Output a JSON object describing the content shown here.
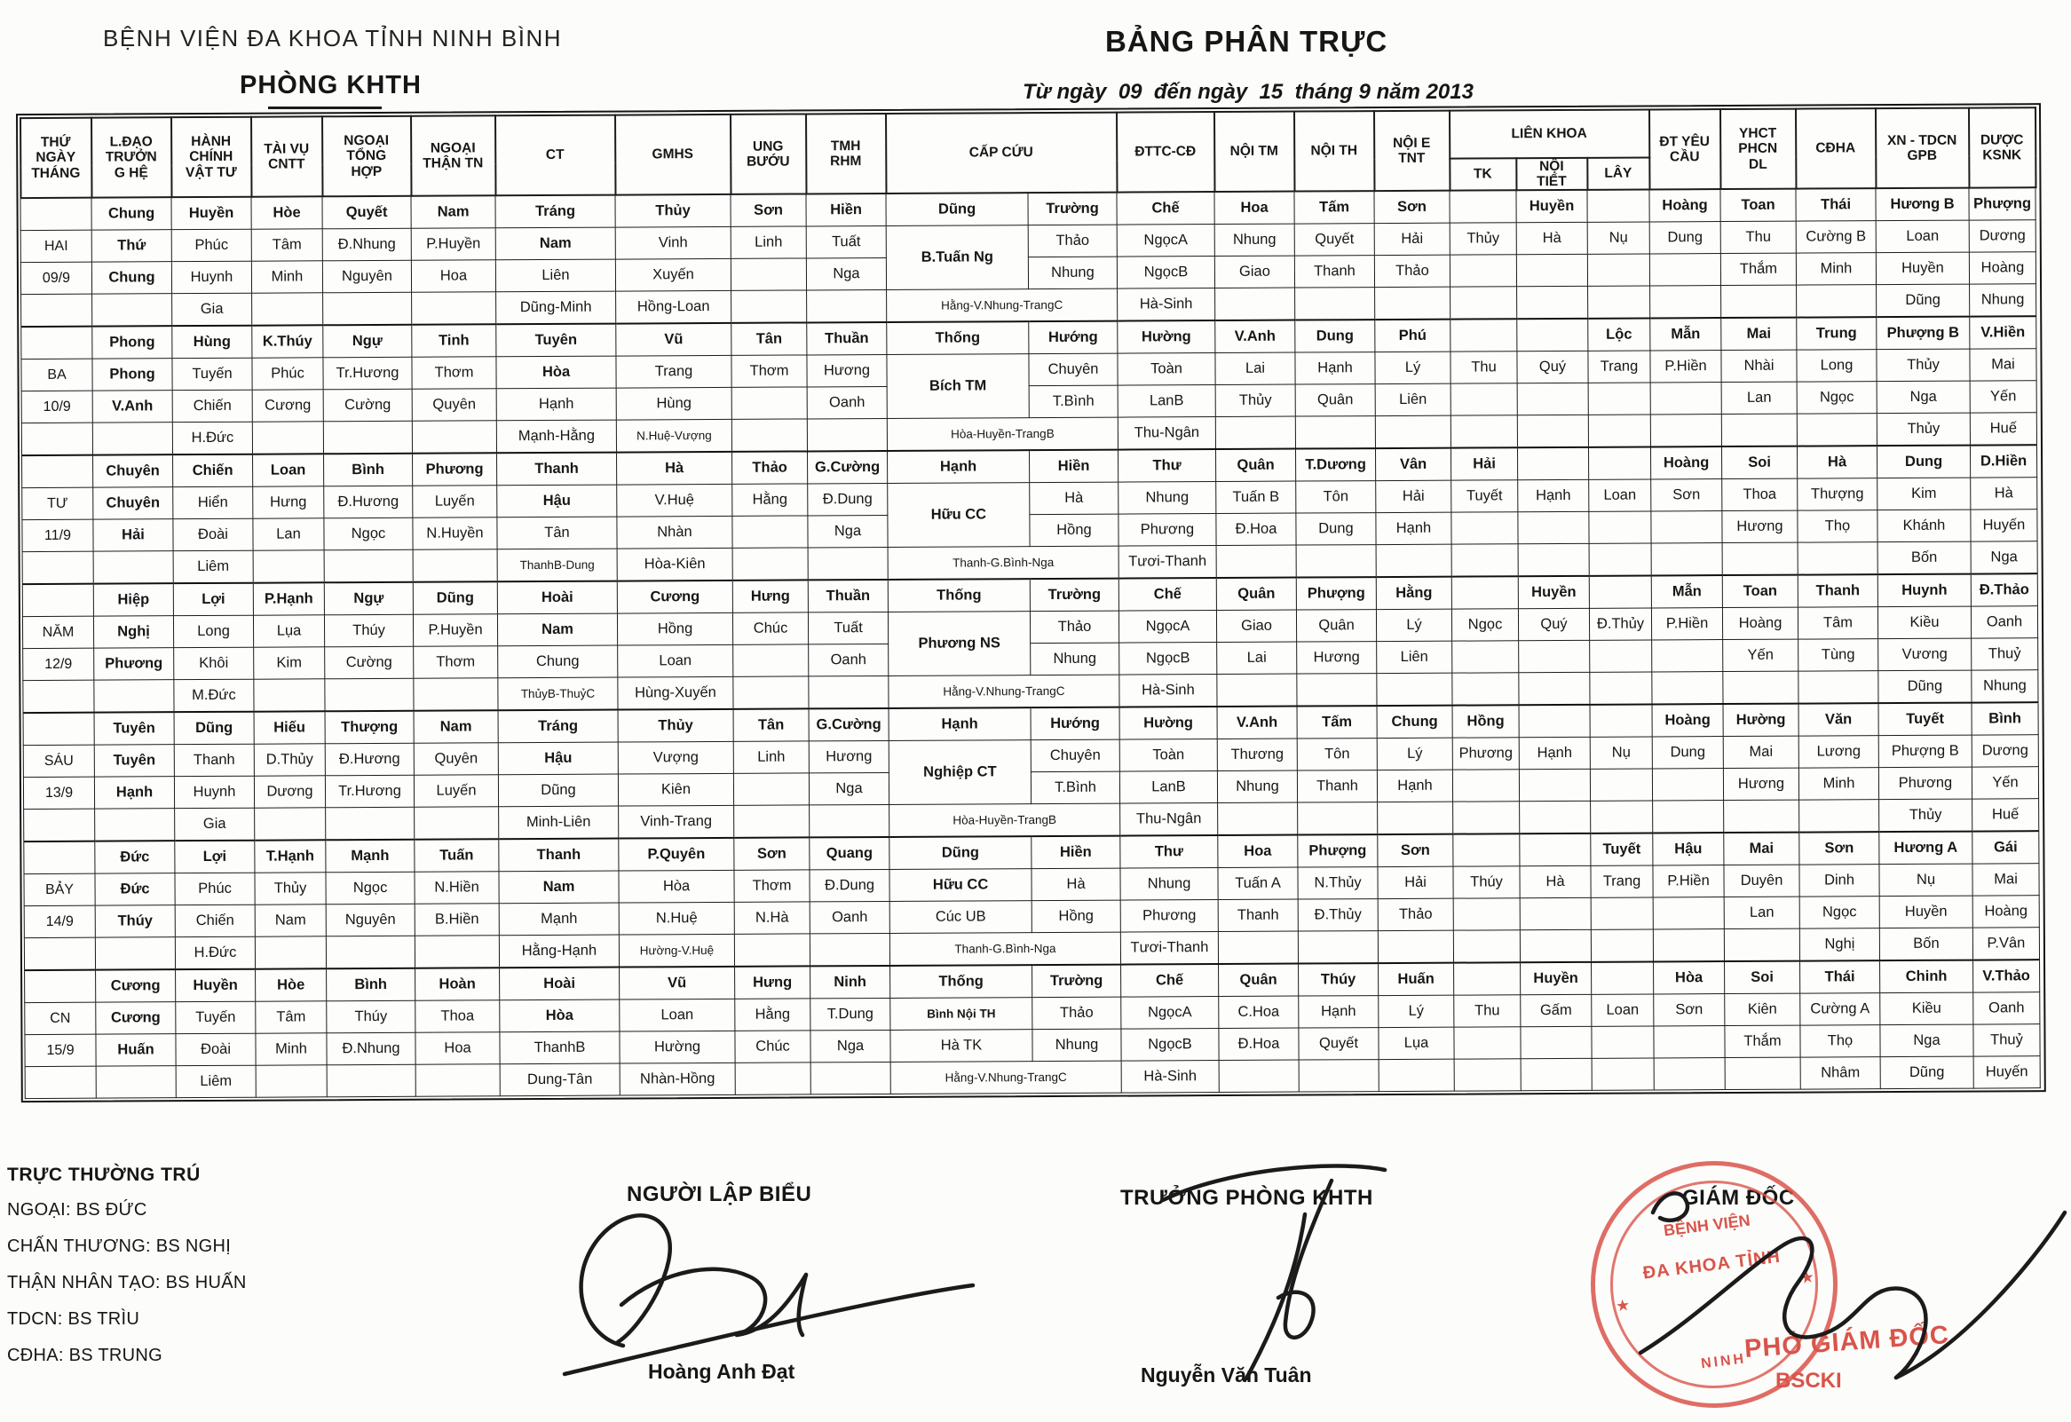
{
  "page": {
    "org": "BỆNH VIỆN ĐA KHOA TỈNH NINH BÌNH",
    "dept": "PHÒNG KHTH",
    "title": "BẢNG PHÂN TRỰC",
    "subtitle": "Từ ngày  09  đến ngày  15  tháng 9 năm 2013"
  },
  "table": {
    "headers": [
      {
        "label": "THỨ\nNGÀY\nTHÁNG",
        "w": 80
      },
      {
        "label": "L.ĐẠO\nTRƯỞN\nG HỆ",
        "w": 90
      },
      {
        "label": "HÀNH\nCHÍNH\nVẬT TƯ",
        "w": 90
      },
      {
        "label": "TÀI VỤ\nCNTT",
        "w": 80
      },
      {
        "label": "NGOẠI\nTỔNG\nHỢP",
        "w": 100
      },
      {
        "label": "NGOẠI\nTHẬN TN",
        "w": 95
      },
      {
        "label": "CT",
        "w": 135
      },
      {
        "label": "GMHS",
        "w": 130
      },
      {
        "label": "UNG\nBƯỚU",
        "w": 85
      },
      {
        "label": "TMH\nRHM",
        "w": 90
      },
      {
        "label": "CẤP CỨU",
        "w": 160,
        "span": 2,
        "w2": 100
      },
      {
        "label": "ĐTTC-CĐ",
        "w": 110
      },
      {
        "label": "NỘI TM",
        "w": 90
      },
      {
        "label": "NỘI TH",
        "w": 90
      },
      {
        "label": "NỘI E\nTNT",
        "w": 85
      },
      {
        "label": "LIÊN  KHOA",
        "subs": [
          {
            "label": "TK",
            "w": 75
          },
          {
            "label": "NỘI\nTIẾT",
            "w": 80
          },
          {
            "label": "LÂY",
            "w": 70
          }
        ]
      },
      {
        "label": "ĐT YÊU\nCẦU",
        "w": 80
      },
      {
        "label": "YHCT\nPHCN\nDL",
        "w": 85
      },
      {
        "label": "CĐHA",
        "w": 90
      },
      {
        "label": "XN - TDCN\nGPB",
        "w": 105
      },
      {
        "label": "DƯỢC\nKSNK",
        "w": 75
      }
    ],
    "days": [
      {
        "label_col": [
          "",
          "HAI",
          "09/9",
          ""
        ],
        "rows": [
          [
            "Chung",
            "Huyền",
            "Hòe",
            "Quyết",
            "Nam",
            "Tráng",
            "Thủy",
            "Sơn",
            "Hiền",
            "Dũng",
            "Trường",
            "Chế",
            "Hoa",
            "Tấm",
            "Sơn",
            "",
            "Huyền",
            "",
            "Hoàng",
            "Toan",
            "Thái",
            "Hương B",
            "Phượng"
          ],
          [
            "Thứ",
            "Phúc",
            "Tâm",
            "Đ.Nhung",
            "P.Huyền",
            "Nam",
            "Vinh",
            "Linh",
            "Tuất",
            "B.Tuấn Ng",
            "Thảo",
            "NgọcA",
            "Nhung",
            "Quyết",
            "Hải",
            "Thủy",
            "Hà",
            "Nụ",
            "Dung",
            "Thu",
            "Cường B",
            "Loan",
            "Dương"
          ],
          [
            "Chung",
            "Huynh",
            "Minh",
            "Nguyên",
            "Hoa",
            "Liên",
            "Xuyến",
            "",
            "Nga",
            "",
            "Nhung",
            "NgọcB",
            "Giao",
            "Thanh",
            "Thảo",
            "",
            "",
            "",
            "",
            "Thắm",
            "Minh",
            "Huyền",
            "Hoàng"
          ],
          [
            "",
            "Gia",
            "",
            "",
            "",
            "Dũng-Minh",
            "Hồng-Loan",
            "",
            "",
            "Hằng-V.Nhung-TrangC",
            "",
            "Hà-Sinh",
            "",
            "",
            "",
            "",
            "",
            "",
            "",
            "",
            "",
            "Dũng",
            "Nhung"
          ]
        ]
      },
      {
        "label_col": [
          "",
          "BA",
          "10/9",
          ""
        ],
        "rows": [
          [
            "Phong",
            "Hùng",
            "K.Thúy",
            "Ngự",
            "Tinh",
            "Tuyên",
            "Vũ",
            "Tân",
            "Thuần",
            "Thống",
            "Hướng",
            "Hường",
            "V.Anh",
            "Dung",
            "Phú",
            "",
            "",
            "Lộc",
            "Mẫn",
            "Mai",
            "Trung",
            "Phượng B",
            "V.Hiền"
          ],
          [
            "Phong",
            "Tuyến",
            "Phúc",
            "Tr.Hương",
            "Thơm",
            "Hòa",
            "Trang",
            "Thơm",
            "Hương",
            "Bích TM",
            "Chuyên",
            "Toàn",
            "Lai",
            "Hạnh",
            "Lý",
            "Thu",
            "Quý",
            "Trang",
            "P.Hiền",
            "Nhài",
            "Long",
            "Thủy",
            "Mai"
          ],
          [
            "V.Anh",
            "Chiến",
            "Cương",
            "Cường",
            "Quyên",
            "Hạnh",
            "Hùng",
            "",
            "Oanh",
            "",
            "T.Bình",
            "LanB",
            "Thủy",
            "Quân",
            "Liên",
            "",
            "",
            "",
            "",
            "Lan",
            "Ngọc",
            "Nga",
            "Yến"
          ],
          [
            "",
            "H.Đức",
            "",
            "",
            "",
            "Mạnh-Hằng",
            "N.Huệ-Vượng",
            "",
            "",
            "Hòa-Huyền-TrangB",
            "",
            "Thu-Ngân",
            "",
            "",
            "",
            "",
            "",
            "",
            "",
            "",
            "",
            "Thủy",
            "Huế"
          ]
        ]
      },
      {
        "label_col": [
          "",
          "TƯ",
          "11/9",
          ""
        ],
        "rows": [
          [
            "Chuyên",
            "Chiến",
            "Loan",
            "Bình",
            "Phương",
            "Thanh",
            "Hà",
            "Thảo",
            "G.Cường",
            "Hạnh",
            "Hiền",
            "Thư",
            "Quân",
            "T.Dương",
            "Vân",
            "Hải",
            "",
            "",
            "Hoàng",
            "Soi",
            "Hà",
            "Dung",
            "D.Hiền"
          ],
          [
            "Chuyên",
            "Hiển",
            "Hưng",
            "Đ.Hương",
            "Luyến",
            "Hậu",
            "V.Huệ",
            "Hằng",
            "Đ.Dung",
            "Hữu CC",
            "Hà",
            "Nhung",
            "Tuấn B",
            "Tôn",
            "Hải",
            "Tuyết",
            "Hạnh",
            "Loan",
            "Sơn",
            "Thoa",
            "Thượng",
            "Kim",
            "Hà"
          ],
          [
            "Hải",
            "Đoài",
            "Lan",
            "Ngọc",
            "N.Huyền",
            "Tân",
            "Nhàn",
            "",
            "Nga",
            "",
            "Hồng",
            "Phương",
            "Đ.Hoa",
            "Dung",
            "Hạnh",
            "",
            "",
            "",
            "",
            "Hương",
            "Thọ",
            "Khánh",
            "Huyến"
          ],
          [
            "",
            "Liêm",
            "",
            "",
            "",
            "ThanhB-Dung",
            "Hòa-Kiên",
            "",
            "",
            "Thanh-G.Bình-Nga",
            "",
            "Tươi-Thanh",
            "",
            "",
            "",
            "",
            "",
            "",
            "",
            "",
            "",
            "Bốn",
            "Nga"
          ]
        ]
      },
      {
        "label_col": [
          "",
          "NĂM",
          "12/9",
          ""
        ],
        "rows": [
          [
            "Hiệp",
            "Lợi",
            "P.Hạnh",
            "Ngự",
            "Dũng",
            "Hoài",
            "Cương",
            "Hưng",
            "Thuần",
            "Thống",
            "Trường",
            "Chế",
            "Quân",
            "Phượng",
            "Hằng",
            "",
            "Huyền",
            "",
            "Mẫn",
            "Toan",
            "Thanh",
            "Huynh",
            "Đ.Thảo"
          ],
          [
            "Nghị",
            "Long",
            "Lụa",
            "Thúy",
            "P.Huyền",
            "Nam",
            "Hồng",
            "Chúc",
            "Tuất",
            "Phương NS",
            "Thảo",
            "NgọcA",
            "Giao",
            "Quân",
            "Lý",
            "Ngọc",
            "Quý",
            "Đ.Thủy",
            "P.Hiền",
            "Hoàng",
            "Tâm",
            "Kiều",
            "Oanh"
          ],
          [
            "Phương",
            "Khôi",
            "Kim",
            "Cường",
            "Thơm",
            "Chung",
            "Loan",
            "",
            "Oanh",
            "",
            "Nhung",
            "NgọcB",
            "Lai",
            "Hương",
            "Liên",
            "",
            "",
            "",
            "",
            "Yến",
            "Tùng",
            "Vương",
            "Thuỷ"
          ],
          [
            "",
            "M.Đức",
            "",
            "",
            "",
            "ThủyB-ThuỷC",
            "Hùng-Xuyến",
            "",
            "",
            "Hằng-V.Nhung-TrangC",
            "",
            "Hà-Sinh",
            "",
            "",
            "",
            "",
            "",
            "",
            "",
            "",
            "",
            "Dũng",
            "Nhung"
          ]
        ]
      },
      {
        "label_col": [
          "",
          "SÁU",
          "13/9",
          ""
        ],
        "rows": [
          [
            "Tuyên",
            "Dũng",
            "Hiếu",
            "Thượng",
            "Nam",
            "Tráng",
            "Thủy",
            "Tân",
            "G.Cường",
            "Hạnh",
            "Hướng",
            "Hường",
            "V.Anh",
            "Tấm",
            "Chung",
            "Hồng",
            "",
            "",
            "Hoàng",
            "Hường",
            "Văn",
            "Tuyết",
            "Bình"
          ],
          [
            "Tuyên",
            "Thanh",
            "D.Thủy",
            "Đ.Hương",
            "Quyên",
            "Hậu",
            "Vượng",
            "Linh",
            "Hương",
            "Nghiệp CT",
            "Chuyên",
            "Toàn",
            "Thương",
            "Tôn",
            "Lý",
            "Phương",
            "Hạnh",
            "Nụ",
            "Dung",
            "Mai",
            "Lương",
            "Phượng B",
            "Dương"
          ],
          [
            "Hạnh",
            "Huynh",
            "Dương",
            "Tr.Hương",
            "Luyến",
            "Dũng",
            "Kiên",
            "",
            "Nga",
            "",
            "T.Bình",
            "LanB",
            "Nhung",
            "Thanh",
            "Hạnh",
            "",
            "",
            "",
            "",
            "Hương",
            "Minh",
            "Phương",
            "Yến"
          ],
          [
            "",
            "Gia",
            "",
            "",
            "",
            "Minh-Liên",
            "Vinh-Trang",
            "",
            "",
            "Hòa-Huyền-TrangB",
            "",
            "Thu-Ngân",
            "",
            "",
            "",
            "",
            "",
            "",
            "",
            "",
            "",
            "Thủy",
            "Huế"
          ]
        ]
      },
      {
        "label_col": [
          "",
          "BẢY",
          "14/9",
          ""
        ],
        "rows": [
          [
            "Đức",
            "Lợi",
            "T.Hạnh",
            "Mạnh",
            "Tuấn",
            "Thanh",
            "P.Quyên",
            "Sơn",
            "Quang",
            "Dũng",
            "Hiền",
            "Thư",
            "Hoa",
            "Phượng",
            "Sơn",
            "",
            "",
            "Tuyết",
            "Hậu",
            "Mai",
            "Sơn",
            "Hương A",
            "Gái"
          ],
          [
            "Đức",
            "Phúc",
            "Thủy",
            "Ngọc",
            "N.Hiền",
            "Nam",
            "Hòa",
            "Thơm",
            "Đ.Dung",
            "Hữu CC",
            "Hà",
            "Nhung",
            "Tuấn A",
            "N.Thủy",
            "Hải",
            "Thúy",
            "Hà",
            "Trang",
            "P.Hiền",
            "Duyên",
            "Dinh",
            "Nụ",
            "Mai"
          ],
          [
            "Thúy",
            "Chiến",
            "Nam",
            "Nguyên",
            "B.Hiền",
            "Mạnh",
            "N.Huệ",
            "N.Hà",
            "Oanh",
            "Cúc UB",
            "Hồng",
            "Phương",
            "Thanh",
            "Đ.Thủy",
            "Thảo",
            "",
            "",
            "",
            "",
            "Lan",
            "Ngọc",
            "Huyền",
            "Hoàng"
          ],
          [
            "",
            "H.Đức",
            "",
            "",
            "",
            "Hằng-Hạnh",
            "Hường-V.Huệ",
            "",
            "",
            "Thanh-G.Bình-Nga",
            "",
            "Tươi-Thanh",
            "",
            "",
            "",
            "",
            "",
            "",
            "",
            "",
            "Nghị",
            "Bốn",
            "P.Vân"
          ]
        ]
      },
      {
        "label_col": [
          "",
          "CN",
          "15/9",
          ""
        ],
        "rows": [
          [
            "Cương",
            "Huyền",
            "Hòe",
            "Bình",
            "Hoàn",
            "Hoài",
            "Vũ",
            "Hưng",
            "Ninh",
            "Thống",
            "Trường",
            "Chế",
            "Quân",
            "Thúy",
            "Huấn",
            "",
            "Huyền",
            "",
            "Hòa",
            "Soi",
            "Thái",
            "Chinh",
            "V.Thảo"
          ],
          [
            "Cương",
            "Tuyến",
            "Tâm",
            "Thúy",
            "Thoa",
            "Hòa",
            "Loan",
            "Hằng",
            "T.Dung",
            "Bình Nội TH",
            "Thảo",
            "NgọcA",
            "C.Hoa",
            "Hạnh",
            "Lý",
            "Thu",
            "Gấm",
            "Loan",
            "Sơn",
            "Kiên",
            "Cường A",
            "Kiều",
            "Oanh"
          ],
          [
            "Huấn",
            "Đoài",
            "Minh",
            "Đ.Nhung",
            "Hoa",
            "ThanhB",
            "Hường",
            "Chúc",
            "Nga",
            "Hà TK",
            "Nhung",
            "NgọcB",
            "Đ.Hoa",
            "Quyết",
            "Lụa",
            "",
            "",
            "",
            "",
            "Thắm",
            "Thọ",
            "Nga",
            "Thuỷ"
          ],
          [
            "",
            "Liêm",
            "",
            "",
            "",
            "Dung-Tân",
            "Nhàn-Hồng",
            "",
            "",
            "Hằng-V.Nhung-TrangC",
            "",
            "Hà-Sinh",
            "",
            "",
            "",
            "",
            "",
            "",
            "",
            "",
            "Nhâm",
            "Dũng",
            "Huyến"
          ]
        ]
      }
    ]
  },
  "footer": {
    "standby_title": "TRỰC THƯỜNG TRÚ",
    "standby_lines": [
      "NGOẠI: BS ĐỨC",
      "CHẤN THƯƠNG: BS NGHỊ",
      "THẬN NHÂN TẠO: BS HUẤN",
      "TDCN: BS TRÌU",
      "CĐHA:  BS TRUNG"
    ],
    "preparer_title": "NGƯỜI LẬP BIỂU",
    "preparer_name": "Hoàng Anh Đạt",
    "head_title": "TRƯỞNG PHÒNG KHTH",
    "head_name": "Nguyễn Văn Tuân",
    "director_title": "GIÁM ĐỐC",
    "deputy_title": "PHÓ GIÁM ĐỐC",
    "deputy_line": "BSCKI"
  },
  "stamp": {
    "line1": "BỆNH VIỆN",
    "line2": "ĐA KHOA TỈNH",
    "line3": "NINH",
    "star": "★"
  },
  "colors": {
    "red": "#d9544a",
    "ink": "#161616"
  }
}
